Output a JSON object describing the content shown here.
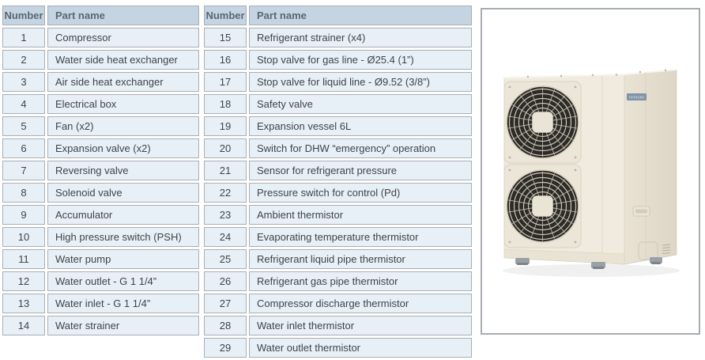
{
  "colors": {
    "header_bg": "#c5d4e2",
    "header_text": "#5c6770",
    "cell_bg": "#e8f0f7",
    "cell_text": "#3d444a",
    "cell_border": "#a8aeb4",
    "panel_border": "#a7acb1"
  },
  "tables": [
    {
      "headers": {
        "number": "Number",
        "part_name": "Part name"
      },
      "rows": [
        {
          "number": "1",
          "name": "Compressor"
        },
        {
          "number": "2",
          "name": "Water side heat exchanger"
        },
        {
          "number": "3",
          "name": "Air side heat exchanger"
        },
        {
          "number": "4",
          "name": "Electrical box"
        },
        {
          "number": "5",
          "name": "Fan (x2)"
        },
        {
          "number": "6",
          "name": "Expansion valve (x2)"
        },
        {
          "number": "7",
          "name": "Reversing valve"
        },
        {
          "number": "8",
          "name": "Solenoid valve"
        },
        {
          "number": "9",
          "name": "Accumulator"
        },
        {
          "number": "10",
          "name": "High pressure switch (PSH)"
        },
        {
          "number": "11",
          "name": "Water pump"
        },
        {
          "number": "12",
          "name": "Water outlet - G 1 1/4”"
        },
        {
          "number": "13",
          "name": "Water inlet - G 1 1/4”"
        },
        {
          "number": "14",
          "name": "Water strainer"
        }
      ]
    },
    {
      "headers": {
        "number": "Number",
        "part_name": "Part name"
      },
      "rows": [
        {
          "number": "15",
          "name": "Refrigerant strainer (x4)"
        },
        {
          "number": "16",
          "name": "Stop valve for gas line - Ø25.4 (1”)"
        },
        {
          "number": "17",
          "name": "Stop valve for liquid line - Ø9.52 (3/8”)"
        },
        {
          "number": "18",
          "name": "Safety valve"
        },
        {
          "number": "19",
          "name": "Expansion vessel 6L"
        },
        {
          "number": "20",
          "name": "Switch for DHW “emergency” operation"
        },
        {
          "number": "21",
          "name": "Sensor for refrigerant pressure"
        },
        {
          "number": "22",
          "name": "Pressure switch for control (Pd)"
        },
        {
          "number": "23",
          "name": "Ambient thermistor"
        },
        {
          "number": "24",
          "name": "Evaporating temperature thermistor"
        },
        {
          "number": "25",
          "name": "Refrigerant liquid pipe thermistor"
        },
        {
          "number": "26",
          "name": "Refrigerant gas pipe thermistor"
        },
        {
          "number": "27",
          "name": "Compressor discharge thermistor"
        },
        {
          "number": "28",
          "name": "Water inlet thermistor"
        },
        {
          "number": "29",
          "name": "Water outlet thermistor"
        }
      ]
    }
  ],
  "product_image": {
    "brand_label": "HITACHI"
  }
}
